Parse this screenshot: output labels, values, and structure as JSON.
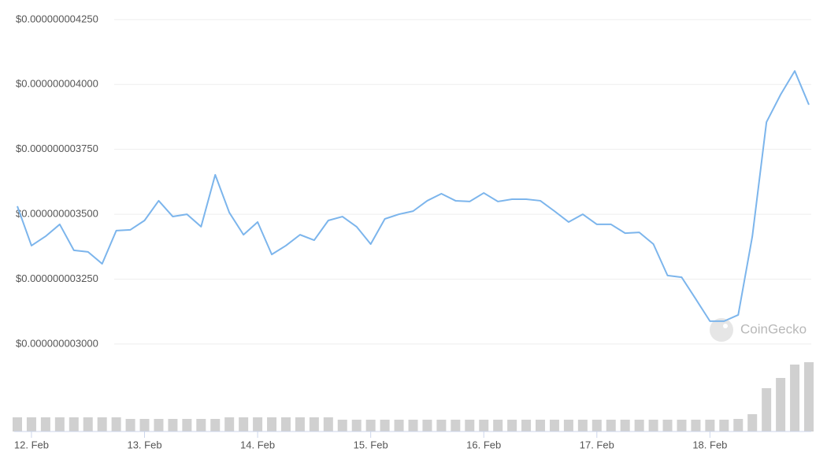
{
  "chart_data": {
    "type": "line",
    "categories": [
      null,
      "12. Feb",
      null,
      null,
      null,
      null,
      null,
      null,
      null,
      "13. Feb",
      null,
      null,
      null,
      null,
      null,
      null,
      null,
      "14. Feb",
      null,
      null,
      null,
      null,
      null,
      null,
      null,
      "15. Feb",
      null,
      null,
      null,
      null,
      null,
      null,
      null,
      "16. Feb",
      null,
      null,
      null,
      null,
      null,
      null,
      null,
      "17. Feb",
      null,
      null,
      null,
      null,
      null,
      null,
      null,
      "18. Feb",
      null,
      null,
      null,
      null,
      null,
      null,
      null
    ],
    "values": [
      3.531e-09,
      3.379e-09,
      3.415e-09,
      3.461e-09,
      3.361e-09,
      3.355e-09,
      3.309e-09,
      3.437e-09,
      3.44e-09,
      3.476e-09,
      3.552e-09,
      3.491e-09,
      3.5e-09,
      3.452e-09,
      3.652e-09,
      3.506e-09,
      3.421e-09,
      3.47e-09,
      3.345e-09,
      3.379e-09,
      3.421e-09,
      3.4e-09,
      3.476e-09,
      3.491e-09,
      3.452e-09,
      3.385e-09,
      3.482e-09,
      3.5e-09,
      3.512e-09,
      3.552e-09,
      3.579e-09,
      3.552e-09,
      3.549e-09,
      3.582e-09,
      3.549e-09,
      3.558e-09,
      3.558e-09,
      3.552e-09,
      3.512e-09,
      3.47e-09,
      3.5e-09,
      3.461e-09,
      3.461e-09,
      3.427e-09,
      3.43e-09,
      3.385e-09,
      3.264e-09,
      3.257e-09,
      3.173e-09,
      3.088e-09,
      3.088e-09,
      3.112e-09,
      3.415e-09,
      3.855e-09,
      3.961e-09,
      4.052e-09,
      3.922e-09
    ],
    "color": "#7cb5ec",
    "volume": [
      18,
      18,
      18,
      18,
      18,
      18,
      18,
      18,
      16,
      16,
      16,
      16,
      16,
      16,
      16,
      18,
      18,
      18,
      18,
      18,
      18,
      18,
      18,
      15,
      15,
      15,
      15,
      15,
      15,
      15,
      15,
      15,
      15,
      15,
      15,
      15,
      15,
      15,
      15,
      15,
      15,
      15,
      15,
      15,
      15,
      15,
      15,
      15,
      15,
      15,
      15,
      16,
      22,
      55,
      68,
      85,
      88
    ],
    "volume_color": "#d0d0d0",
    "volume_ylim": [
      0,
      100
    ],
    "ylim": [
      2.945e-09,
      4.28e-09
    ],
    "yticks": [
      {
        "value": 3e-09,
        "label": "$0.000000003000"
      },
      {
        "value": 3.25e-09,
        "label": "$0.000000003250"
      },
      {
        "value": 3.5e-09,
        "label": "$0.000000003500"
      },
      {
        "value": 3.75e-09,
        "label": "$0.000000003750"
      },
      {
        "value": 4e-09,
        "label": "$0.000000004000"
      },
      {
        "value": 4.25e-09,
        "label": "$0.000000004250"
      }
    ],
    "grid": true,
    "watermark": "CoinGecko"
  }
}
